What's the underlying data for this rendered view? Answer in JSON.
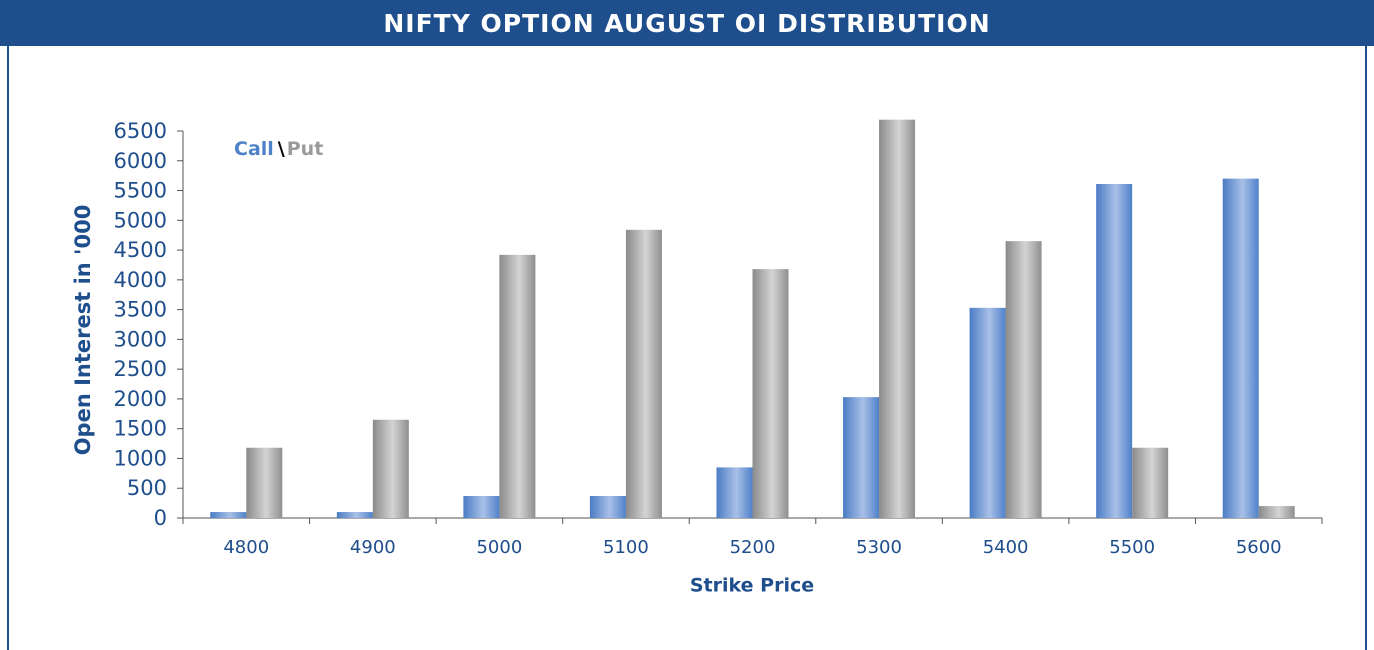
{
  "chart_data": {
    "type": "bar",
    "title": "NIFTY OPTION AUGUST OI DISTRIBUTION",
    "x_label": "Strike Price",
    "y_label": "Open Interest in '000",
    "legend_separator": "\\",
    "categories": [
      "4800",
      "4900",
      "5000",
      "5100",
      "5200",
      "5300",
      "5400",
      "5500",
      "5600"
    ],
    "series": [
      {
        "name": "Call",
        "color": "#4f81c9",
        "values": [
          100,
          100,
          370,
          370,
          850,
          2030,
          3530,
          5610,
          5700
        ]
      },
      {
        "name": "Put",
        "color": "#9a9a9a",
        "values": [
          1180,
          1650,
          4420,
          4840,
          4180,
          6690,
          4650,
          1180,
          200
        ]
      }
    ],
    "ylim": [
      0,
      6500
    ],
    "yticks": [
      0,
      500,
      1000,
      1500,
      2000,
      2500,
      3000,
      3500,
      4000,
      4500,
      5000,
      5500,
      6000,
      6500
    ],
    "grid": false
  }
}
